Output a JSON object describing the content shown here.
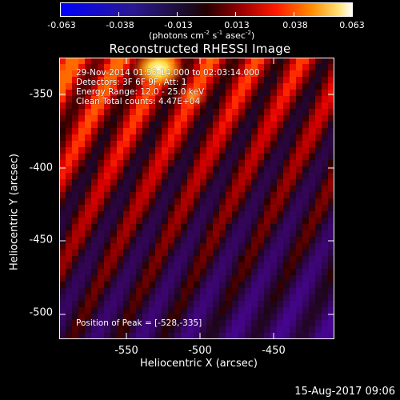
{
  "colorbar": {
    "ticks": [
      "-0.063",
      "-0.038",
      "-0.013",
      "0.013",
      "0.038",
      "0.063"
    ],
    "units": {
      "pre": "(photons cm",
      "e1": "-2",
      "mid1": " s",
      "e2": "-1",
      "mid2": " asec",
      "e3": "-2",
      "post": ")"
    }
  },
  "title": "Reconstructed RHESSI Image",
  "annotations": {
    "time": "29-Nov-2014 01:53:14.000 to 02:03:14.000",
    "detectors": "Detectors: 3F 6F 9F, Att: 1",
    "energy": "Energy Range: 12.0 - 25.0 keV",
    "clean": "Clean     Total counts: 4.47E+04",
    "peak": "Position of Peak = [-528,-335]"
  },
  "axes": {
    "xlabel": "Heliocentric X (arcsec)",
    "ylabel": "Heliocentric Y (arcsec)",
    "xticks": [
      "-550",
      "-500",
      "-450"
    ],
    "yticks": [
      "-350",
      "-400",
      "-450",
      "-500"
    ],
    "xrange": [
      -590,
      -410
    ],
    "yrange": [
      -520,
      -330
    ]
  },
  "footer_stamp": "15-Aug-2017 09:06",
  "colors": {
    "background": "#000000",
    "text": "#ffffff"
  }
}
